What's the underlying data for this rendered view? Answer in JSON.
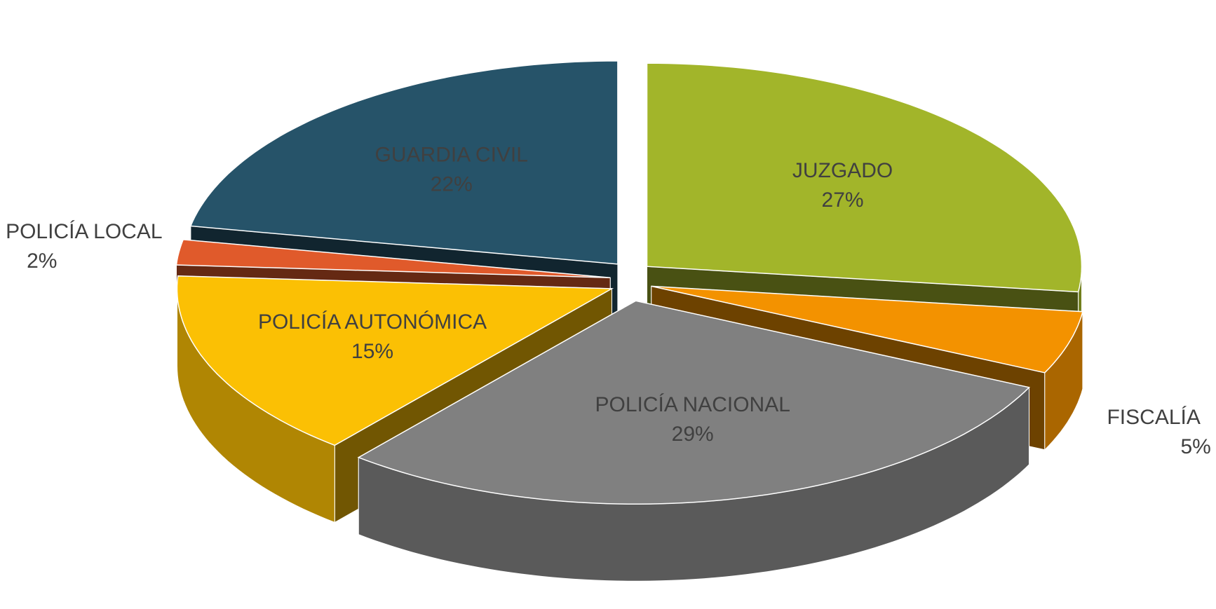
{
  "chart_data": {
    "type": "pie3d",
    "categories": [
      "JUZGADO",
      "FISCALÍA",
      "POLICÍA NACIONAL",
      "POLICÍA AUTONÓMICA",
      "POLICÍA LOCAL",
      "GUARDIA CIVIL"
    ],
    "values": [
      27,
      5,
      29,
      15,
      2,
      22
    ],
    "value_labels": [
      "27%",
      "5%",
      "29%",
      "15%",
      "2%",
      "22%"
    ],
    "colors": [
      "#a2b52a",
      "#f39200",
      "#808080",
      "#fbc004",
      "#e05a2b",
      "#265369"
    ]
  }
}
